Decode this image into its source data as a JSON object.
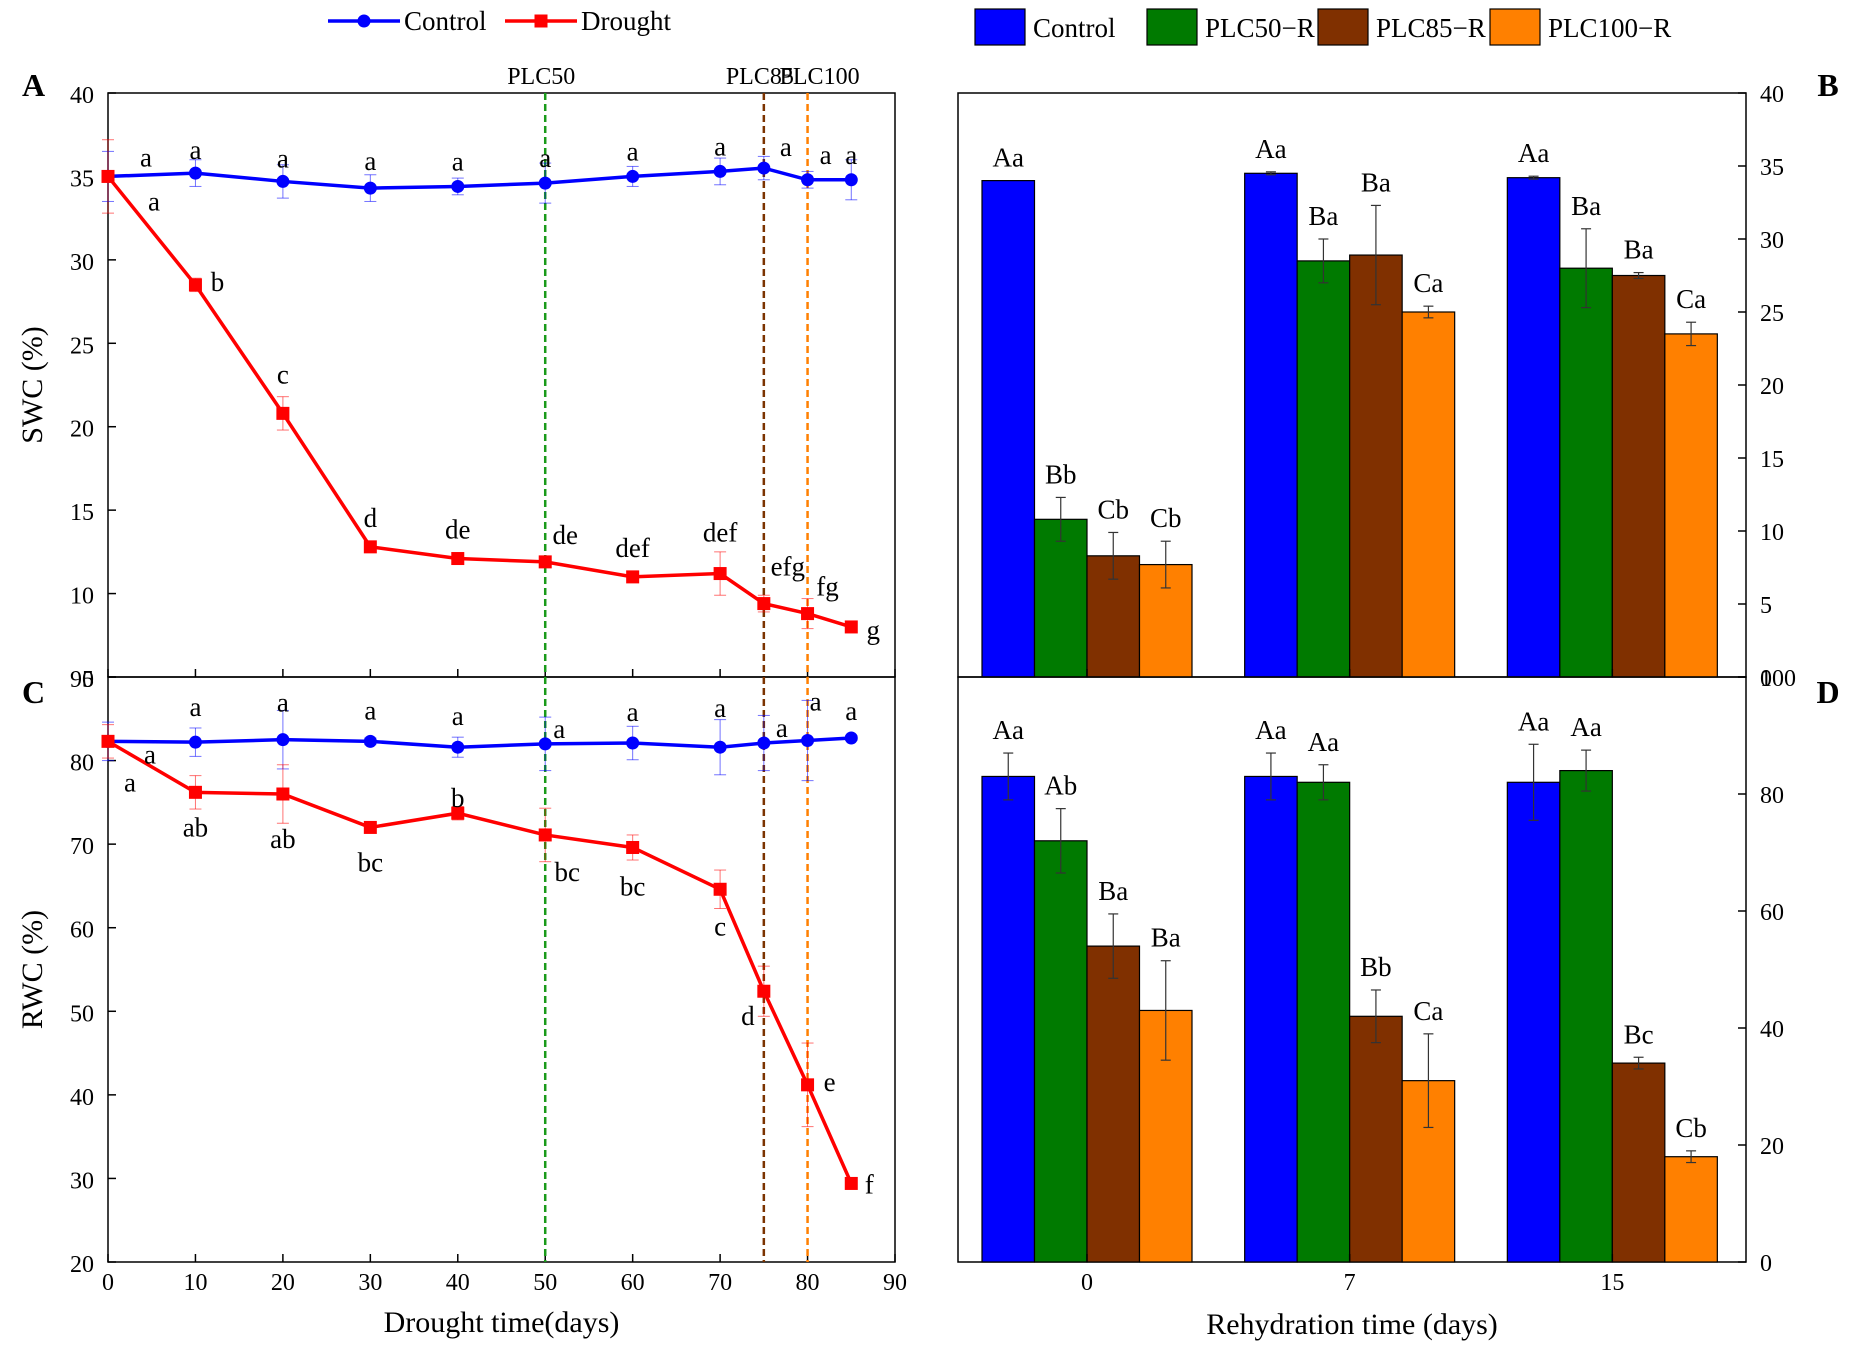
{
  "chart_data": [
    {
      "panel": "A",
      "type": "line",
      "xlabel": "",
      "ylabel": "SWC (%)",
      "xlim": [
        0,
        90
      ],
      "ylim": [
        5,
        40
      ],
      "yticks": [
        5,
        10,
        15,
        20,
        25,
        30,
        35,
        40
      ],
      "x": [
        0,
        10,
        20,
        30,
        40,
        50,
        60,
        70,
        75,
        80,
        85
      ],
      "series": [
        {
          "name": "Control",
          "color": "#0000ff",
          "marker": "circle",
          "values": [
            35.0,
            35.2,
            34.7,
            34.3,
            34.4,
            34.6,
            35.0,
            35.3,
            35.5,
            34.8,
            34.8
          ],
          "errors": [
            1.5,
            0.8,
            1.0,
            0.8,
            0.5,
            1.2,
            0.6,
            0.8,
            0.7,
            0.5,
            1.2
          ],
          "labels": [
            "a",
            "a",
            "a",
            "a",
            "a",
            "a",
            "a",
            "a",
            "a",
            "a",
            "a"
          ]
        },
        {
          "name": "Drought",
          "color": "#ff0000",
          "marker": "square",
          "values": [
            35.0,
            28.5,
            20.8,
            12.8,
            12.1,
            11.9,
            11.0,
            11.2,
            9.4,
            8.8,
            8.0
          ],
          "errors": [
            2.2,
            0.4,
            1.0,
            0.3,
            0.3,
            0.3,
            0.3,
            1.3,
            0.5,
            0.9,
            0.3
          ],
          "labels": [
            "a",
            "b",
            "c",
            "d",
            "de",
            "de",
            "def",
            "def",
            "efg",
            "fg",
            "g"
          ]
        }
      ],
      "vlines": [
        {
          "x": 50,
          "label": "PLC50",
          "color": "#1a9a1a"
        },
        {
          "x": 75,
          "label": "PLC85",
          "color": "#7b3300"
        },
        {
          "x": 80,
          "label": "PLC100",
          "color": "#ff8000"
        }
      ]
    },
    {
      "panel": "B",
      "type": "bar",
      "ylim": [
        0,
        40
      ],
      "yticks": [
        0,
        5,
        10,
        15,
        20,
        25,
        30,
        35,
        40
      ],
      "categories": [
        "0",
        "7",
        "15"
      ],
      "series": [
        {
          "name": "Control",
          "color": "#0000ff",
          "values": [
            34.0,
            34.5,
            34.2
          ],
          "errors": [
            0,
            0.1,
            0.1
          ],
          "labels": [
            "Aa",
            "Aa",
            "Aa"
          ]
        },
        {
          "name": "PLC50−R",
          "color": "#007a00",
          "values": [
            10.8,
            28.5,
            28.0
          ],
          "errors": [
            1.5,
            1.5,
            2.7
          ],
          "labels": [
            "Bb",
            "Ba",
            "Ba"
          ]
        },
        {
          "name": "PLC85−R",
          "color": "#803000",
          "values": [
            8.3,
            28.9,
            27.5
          ],
          "errors": [
            1.6,
            3.4,
            0.2
          ],
          "labels": [
            "Cb",
            "Ba",
            "Ba"
          ]
        },
        {
          "name": "PLC100−R",
          "color": "#ff8000",
          "values": [
            7.7,
            25.0,
            23.5
          ],
          "errors": [
            1.6,
            0.4,
            0.8
          ],
          "labels": [
            "Cb",
            "Ca",
            "Ca"
          ]
        }
      ]
    },
    {
      "panel": "C",
      "type": "line",
      "xlabel": "Drought time(days)",
      "ylabel": "RWC (%)",
      "xlim": [
        0,
        90
      ],
      "ylim": [
        20,
        90
      ],
      "xticks": [
        0,
        10,
        20,
        30,
        40,
        50,
        60,
        70,
        80,
        90
      ],
      "yticks": [
        20,
        30,
        40,
        50,
        60,
        70,
        80,
        90
      ],
      "x": [
        0,
        10,
        20,
        30,
        40,
        50,
        60,
        70,
        75,
        80,
        85
      ],
      "series": [
        {
          "name": "Control",
          "color": "#0000ff",
          "marker": "circle",
          "values": [
            82.3,
            82.2,
            82.5,
            82.3,
            81.6,
            82.0,
            82.1,
            81.6,
            82.1,
            82.4,
            82.7
          ],
          "errors": [
            2.3,
            1.7,
            3.5,
            0.4,
            1.2,
            3.2,
            2.0,
            3.3,
            3.3,
            4.8,
            0.3
          ],
          "labels": [
            "a",
            "a",
            "a",
            "a",
            "a",
            "a",
            "a",
            "a",
            "a",
            "a",
            "a"
          ]
        },
        {
          "name": "Drought",
          "color": "#ff0000",
          "marker": "square",
          "values": [
            82.3,
            76.2,
            76.0,
            72.0,
            73.7,
            71.1,
            69.6,
            64.6,
            52.4,
            41.2,
            29.4
          ],
          "errors": [
            2.0,
            2.0,
            3.5,
            0.3,
            0.8,
            3.2,
            1.5,
            2.3,
            3.0,
            5.0,
            0.3
          ],
          "labels": [
            "a",
            "ab",
            "ab",
            "bc",
            "b",
            "bc",
            "bc",
            "c",
            "d",
            "e",
            "f"
          ]
        }
      ],
      "vlines": [
        {
          "x": 50,
          "color": "#1a9a1a"
        },
        {
          "x": 75,
          "color": "#7b3300"
        },
        {
          "x": 80,
          "color": "#ff8000"
        }
      ]
    },
    {
      "panel": "D",
      "type": "bar",
      "xlabel": "Rehydration time (days)",
      "ylim": [
        0,
        100
      ],
      "yticks": [
        0,
        20,
        40,
        60,
        80,
        100
      ],
      "categories": [
        "0",
        "7",
        "15"
      ],
      "series": [
        {
          "name": "Control",
          "color": "#0000ff",
          "values": [
            83.0,
            83.0,
            82.0
          ],
          "errors": [
            4.0,
            4.0,
            6.5
          ],
          "labels": [
            "Aa",
            "Aa",
            "Aa"
          ]
        },
        {
          "name": "PLC50−R",
          "color": "#007a00",
          "values": [
            72.0,
            82.0,
            84.0
          ],
          "errors": [
            5.5,
            3.0,
            3.5
          ],
          "labels": [
            "Ab",
            "Aa",
            "Aa"
          ]
        },
        {
          "name": "PLC85−R",
          "color": "#803000",
          "values": [
            54.0,
            42.0,
            34.0
          ],
          "errors": [
            5.5,
            4.5,
            1.0
          ],
          "labels": [
            "Ba",
            "Bb",
            "Bc"
          ]
        },
        {
          "name": "PLC100−R",
          "color": "#ff8000",
          "values": [
            43.0,
            31.0,
            18.0
          ],
          "errors": [
            8.5,
            8.0,
            1.0
          ],
          "labels": [
            "Ba",
            "Ca",
            "Cb"
          ]
        }
      ]
    }
  ]
}
